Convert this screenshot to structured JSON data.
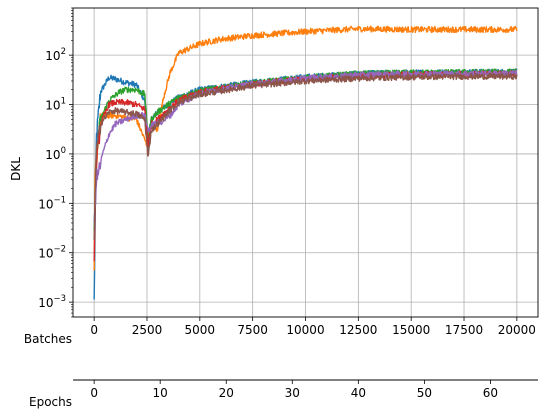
{
  "chart_data": {
    "type": "line",
    "title": "",
    "ylabel": "DKL",
    "xlabel": "",
    "yscale": "log",
    "ylim": [
      0.0005,
      900
    ],
    "xlim": [
      -1000,
      21000
    ],
    "grid": true,
    "legend": "none",
    "x_axis": {
      "label": "Batches",
      "ticks": [
        0,
        2500,
        5000,
        7500,
        10000,
        12500,
        15000,
        17500,
        20000
      ],
      "tick_labels": [
        "0",
        "2500",
        "5000",
        "7500",
        "10000",
        "12500",
        "15000",
        "17500",
        "20000"
      ]
    },
    "secondary_x_axis": {
      "label": "Epochs",
      "range": [
        -3.2,
        67.2
      ],
      "ticks": [
        0,
        10,
        20,
        30,
        40,
        50,
        60
      ],
      "tick_labels": [
        "0",
        "10",
        "20",
        "30",
        "40",
        "50",
        "60"
      ]
    },
    "y_ticks": [
      0.001,
      0.01,
      0.1,
      1,
      10,
      100
    ],
    "y_tick_labels": [
      {
        "base": "10",
        "exp": "−3"
      },
      {
        "base": "10",
        "exp": "−2"
      },
      {
        "base": "10",
        "exp": "−1"
      },
      {
        "base": "10",
        "exp": "0"
      },
      {
        "base": "10",
        "exp": "1"
      },
      {
        "base": "10",
        "exp": "2"
      }
    ],
    "series": [
      {
        "color": "#1f77b4",
        "x": [
          0,
          100,
          300,
          700,
          1000,
          1500,
          2000,
          2400,
          2550,
          2700,
          3000,
          3500,
          4000,
          5000,
          7500,
          10000,
          12500,
          15000,
          17500,
          20000
        ],
        "y": [
          0.001,
          2,
          18,
          35,
          33,
          28,
          25,
          12,
          1,
          5,
          7,
          10,
          14,
          20,
          28,
          36,
          42,
          44,
          45,
          46
        ]
      },
      {
        "color": "#ff7f0e",
        "x": [
          0,
          50,
          200,
          300,
          400,
          1000,
          2000,
          2500,
          2700,
          3000,
          3300,
          3600,
          4000,
          5000,
          6000,
          7500,
          10000,
          12500,
          15000,
          17500,
          20000
        ],
        "y": [
          0.003,
          0.4,
          2,
          5,
          6,
          6,
          5,
          1.5,
          4,
          3,
          15,
          45,
          110,
          170,
          210,
          250,
          300,
          340,
          330,
          330,
          330
        ]
      },
      {
        "color": "#2ca02c",
        "x": [
          0,
          100,
          300,
          700,
          1200,
          1500,
          2000,
          2400,
          2550,
          2700,
          3000,
          3500,
          4000,
          5000,
          7500,
          10000,
          12500,
          15000,
          17500,
          20000
        ],
        "y": [
          0.02,
          0.8,
          5,
          12,
          18,
          20,
          20,
          16,
          2,
          5,
          7,
          10,
          14,
          19,
          27,
          35,
          42,
          44,
          45,
          46
        ]
      },
      {
        "color": "#d62728",
        "x": [
          0,
          100,
          300,
          700,
          1000,
          1500,
          2000,
          2400,
          2550,
          2700,
          3000,
          3500,
          4000,
          5000,
          7500,
          10000,
          12500,
          15000,
          17500,
          20000
        ],
        "y": [
          0.01,
          0.6,
          4,
          10,
          11,
          11,
          10,
          8,
          1.5,
          4,
          5,
          8,
          12,
          18,
          26,
          33,
          38,
          40,
          41,
          42
        ]
      },
      {
        "color": "#9467bd",
        "x": [
          0,
          100,
          250,
          400,
          700,
          1000,
          1500,
          2000,
          2400,
          2550,
          2800,
          3200,
          3600,
          4000,
          5000,
          7500,
          10000,
          12500,
          15000,
          17500,
          20000
        ],
        "y": [
          0.03,
          0.3,
          0.5,
          1,
          2.5,
          4,
          5,
          6,
          6,
          3,
          4,
          4.5,
          6,
          10,
          17,
          26,
          34,
          40,
          42,
          42,
          43
        ]
      },
      {
        "color": "#8c564b",
        "x": [
          0,
          100,
          300,
          700,
          1000,
          1500,
          2000,
          2400,
          2550,
          2700,
          3000,
          3500,
          4000,
          5000,
          7500,
          10000,
          12500,
          15000,
          17500,
          20000
        ],
        "y": [
          0.02,
          1,
          4,
          7,
          7.5,
          7,
          6.5,
          5,
          0.8,
          3,
          4,
          7,
          11,
          16,
          24,
          30,
          34,
          36,
          37,
          37
        ]
      }
    ]
  }
}
